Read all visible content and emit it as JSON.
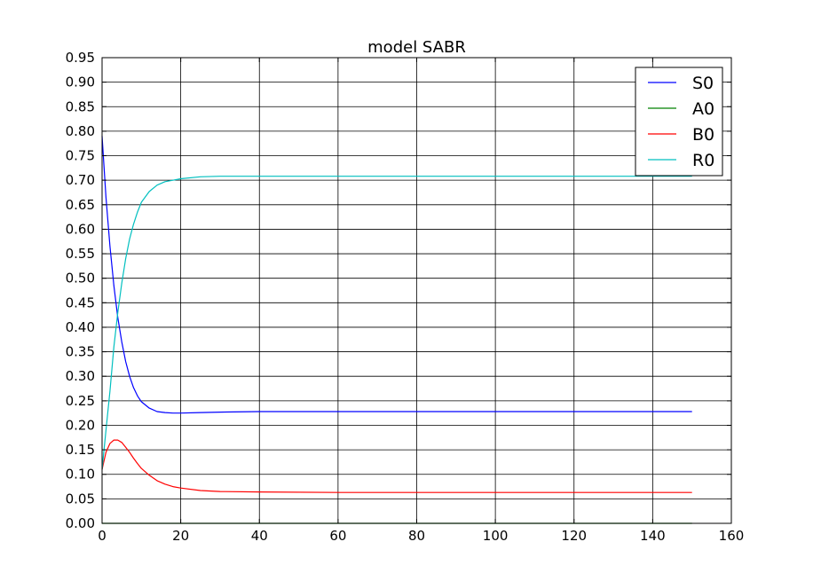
{
  "chart_data": {
    "type": "line",
    "title": "model SABR",
    "xlabel": "",
    "ylabel": "",
    "xlim": [
      0,
      160
    ],
    "ylim": [
      0,
      0.95
    ],
    "grid": true,
    "legend_position": "top-right",
    "x_ticks": [
      "0",
      "20",
      "40",
      "60",
      "80",
      "100",
      "120",
      "140",
      "160"
    ],
    "y_ticks": [
      "0.00",
      "0.05",
      "0.10",
      "0.15",
      "0.20",
      "0.25",
      "0.30",
      "0.35",
      "0.40",
      "0.45",
      "0.50",
      "0.55",
      "0.60",
      "0.65",
      "0.70",
      "0.75",
      "0.80",
      "0.85",
      "0.90",
      "0.95"
    ],
    "x": [
      0,
      1,
      2,
      3,
      4,
      5,
      6,
      7,
      8,
      9,
      10,
      12,
      14,
      16,
      18,
      20,
      25,
      30,
      40,
      60,
      80,
      100,
      120,
      140,
      150
    ],
    "series": [
      {
        "name": "S0",
        "color": "#0000ff",
        "values": [
          0.79,
          0.665,
          0.565,
          0.485,
          0.42,
          0.37,
          0.33,
          0.3,
          0.277,
          0.26,
          0.248,
          0.235,
          0.228,
          0.226,
          0.225,
          0.225,
          0.226,
          0.227,
          0.228,
          0.228,
          0.228,
          0.228,
          0.228,
          0.228,
          0.228
        ]
      },
      {
        "name": "A0",
        "color": "#008000",
        "values": [
          0.0,
          0.0,
          0.0,
          0.0,
          0.0,
          0.0,
          0.0,
          0.0,
          0.0,
          0.0,
          0.0,
          0.0,
          0.0,
          0.0,
          0.0,
          0.0,
          0.0,
          0.0,
          0.0,
          0.0,
          0.0,
          0.0,
          0.0,
          0.0,
          0.0
        ]
      },
      {
        "name": "B0",
        "color": "#ff0000",
        "values": [
          0.11,
          0.145,
          0.163,
          0.17,
          0.17,
          0.165,
          0.155,
          0.145,
          0.133,
          0.122,
          0.112,
          0.098,
          0.087,
          0.08,
          0.075,
          0.072,
          0.067,
          0.065,
          0.064,
          0.063,
          0.063,
          0.063,
          0.063,
          0.063,
          0.063
        ]
      },
      {
        "name": "R0",
        "color": "#00bfbf",
        "values": [
          0.11,
          0.19,
          0.27,
          0.36,
          0.43,
          0.49,
          0.54,
          0.58,
          0.61,
          0.635,
          0.655,
          0.677,
          0.69,
          0.697,
          0.7,
          0.703,
          0.707,
          0.708,
          0.708,
          0.708,
          0.708,
          0.708,
          0.708,
          0.708,
          0.708
        ]
      }
    ]
  }
}
